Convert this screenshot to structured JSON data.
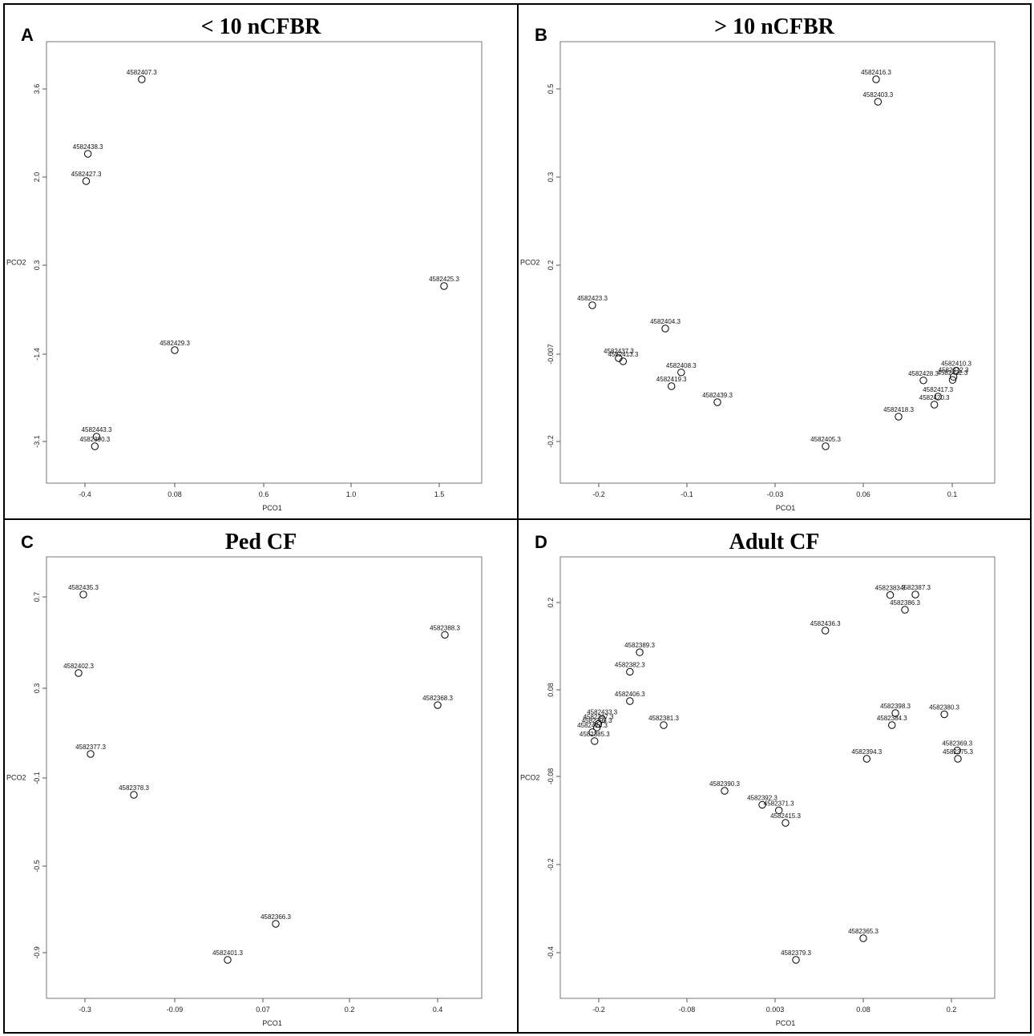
{
  "chart_data": [
    {
      "type": "scatter",
      "letter": "A",
      "title": "< 10 nCFBR",
      "xlabel": "PCO1",
      "ylabel": "PCO2",
      "xticks": [
        "-0.4",
        "0.08",
        "0.6",
        "1.0",
        "1.5"
      ],
      "yticks": [
        "3.6",
        "2.0",
        "0.3",
        "-1.4",
        "-3.1"
      ],
      "points": [
        {
          "label": "4582407.3",
          "x": -0.11,
          "y": 3.75
        },
        {
          "label": "4582438.3",
          "x": -0.42,
          "y": 2.4
        },
        {
          "label": "4582427.3",
          "x": -0.43,
          "y": 1.9
        },
        {
          "label": "4582425.3",
          "x": 1.55,
          "y": -0.15
        },
        {
          "label": "4582429.3",
          "x": 0.08,
          "y": -1.4
        },
        {
          "label": "4582443.3",
          "x": -0.37,
          "y": -3.1
        },
        {
          "label": "4582390.3",
          "x": -0.38,
          "y": -3.26
        }
      ]
    },
    {
      "type": "scatter",
      "letter": "B",
      "title": "> 10 nCFBR",
      "xlabel": "PCO1",
      "ylabel": "PCO2",
      "xticks": [
        "-0.2",
        "-0.1",
        "-0.03",
        "0.06",
        "0.1"
      ],
      "yticks": [
        "0.5",
        "0.3",
        "0.2",
        "-0.007",
        "-0.2"
      ],
      "points": [
        {
          "label": "4582416.3",
          "x": 0.076,
          "y": 0.52
        },
        {
          "label": "4582403.3",
          "x": 0.078,
          "y": 0.47
        },
        {
          "label": "4582423.3",
          "x": -0.21,
          "y": 0.123
        },
        {
          "label": "4582404.3",
          "x": -0.127,
          "y": 0.07
        },
        {
          "label": "4582437.3",
          "x": -0.18,
          "y": 0.0
        },
        {
          "label": "4582413.3",
          "x": -0.175,
          "y": -0.007
        },
        {
          "label": "4582408.3",
          "x": -0.109,
          "y": -0.032
        },
        {
          "label": "4582419.3",
          "x": -0.12,
          "y": -0.063
        },
        {
          "label": "4582439.3",
          "x": -0.068,
          "y": -0.1
        },
        {
          "label": "4582428.3",
          "x": 0.136,
          "y": -0.05
        },
        {
          "label": "4582410.3",
          "x": 0.172,
          "y": -0.028
        },
        {
          "label": "4582412.3",
          "x": 0.169,
          "y": -0.042
        },
        {
          "label": "4582422.3",
          "x": 0.168,
          "y": -0.049
        },
        {
          "label": "4582417.3",
          "x": 0.152,
          "y": -0.087
        },
        {
          "label": "4582420.3",
          "x": 0.148,
          "y": -0.105
        },
        {
          "label": "4582418.3",
          "x": 0.1,
          "y": -0.13
        },
        {
          "label": "4582405.3",
          "x": 0.038,
          "y": -0.218
        }
      ]
    },
    {
      "type": "scatter",
      "letter": "C",
      "title": "Ped CF",
      "xlabel": "PCO1",
      "ylabel": "PCO2",
      "xticks": [
        "-0.3",
        "-0.09",
        "0.07",
        "0.2",
        "0.4"
      ],
      "yticks": [
        "0.7",
        "0.3",
        "-0.1",
        "-0.5",
        "-0.9"
      ],
      "points": [
        {
          "label": "4582435.3",
          "x": -0.305,
          "y": 0.73
        },
        {
          "label": "4582388.3",
          "x": 0.414,
          "y": 0.553
        },
        {
          "label": "4582402.3",
          "x": -0.315,
          "y": 0.385
        },
        {
          "label": "4582368.3",
          "x": 0.4,
          "y": 0.268
        },
        {
          "label": "4582377.3",
          "x": -0.29,
          "y": 0.09
        },
        {
          "label": "4582378.3",
          "x": -0.2,
          "y": -0.16
        },
        {
          "label": "4582366.3",
          "x": 0.085,
          "y": -0.78
        },
        {
          "label": "4582401.3",
          "x": 0.027,
          "y": -0.945
        }
      ]
    },
    {
      "type": "scatter",
      "letter": "D",
      "title": "Adult CF",
      "xlabel": "PCO1",
      "ylabel": "PCO2",
      "xticks": [
        "-0.2",
        "-0.08",
        "0.003",
        "0.08",
        "0.2"
      ],
      "yticks": [
        "0.2",
        "0.08",
        "-0.08",
        "-0.2",
        "-0.4"
      ],
      "points": [
        {
          "label": "4582383.3",
          "x": 0.114,
          "y": 0.22
        },
        {
          "label": "4582387.3",
          "x": 0.148,
          "y": 0.221
        },
        {
          "label": "4582386.3",
          "x": 0.131,
          "y": 0.19
        },
        {
          "label": "4582436.3",
          "x": 0.043,
          "y": 0.135
        },
        {
          "label": "4582389.3",
          "x": -0.155,
          "y": 0.115
        },
        {
          "label": "4582382.3",
          "x": -0.168,
          "y": 0.097
        },
        {
          "label": "4582406.3",
          "x": -0.168,
          "y": 0.07
        },
        {
          "label": "4582398.3",
          "x": 0.12,
          "y": 0.05
        },
        {
          "label": "4582380.3",
          "x": 0.195,
          "y": 0.048
        },
        {
          "label": "4582433.3",
          "x": -0.205,
          "y": 0.04
        },
        {
          "label": "4582397.3",
          "x": -0.21,
          "y": 0.032
        },
        {
          "label": "4582395.3",
          "x": -0.212,
          "y": 0.026
        },
        {
          "label": "4582424.3",
          "x": -0.218,
          "y": 0.018
        },
        {
          "label": "4582381.3",
          "x": -0.123,
          "y": 0.03
        },
        {
          "label": "4582384.3",
          "x": 0.116,
          "y": 0.03
        },
        {
          "label": "4582385.3",
          "x": -0.215,
          "y": 0.003
        },
        {
          "label": "4582394.3",
          "x": 0.087,
          "y": -0.027
        },
        {
          "label": "4582369.3",
          "x": 0.216,
          "y": -0.013
        },
        {
          "label": "4582375.3",
          "x": 0.217,
          "y": -0.027
        },
        {
          "label": "4582390.3",
          "x": -0.054,
          "y": -0.095
        },
        {
          "label": "4582392.3",
          "x": -0.02,
          "y": -0.115
        },
        {
          "label": "4582371.3",
          "x": -0.005,
          "y": -0.123
        },
        {
          "label": "4582415.3",
          "x": 0.001,
          "y": -0.141
        },
        {
          "label": "4582365.3",
          "x": 0.083,
          "y": -0.366
        },
        {
          "label": "4582379.3",
          "x": 0.012,
          "y": -0.419
        }
      ]
    }
  ]
}
